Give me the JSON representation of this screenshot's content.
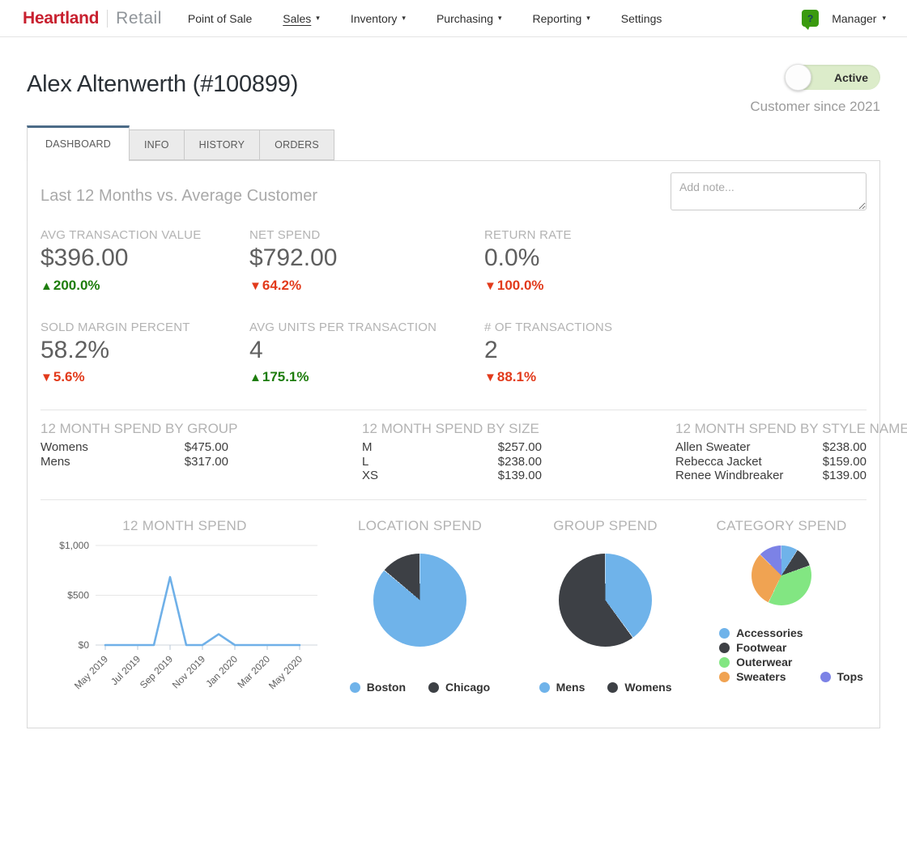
{
  "nav": {
    "brand": {
      "primary": "Heartland",
      "secondary": "Retail"
    },
    "items": [
      {
        "label": "Point of Sale",
        "dropdown": false,
        "active": false
      },
      {
        "label": "Sales",
        "dropdown": true,
        "active": true
      },
      {
        "label": "Inventory",
        "dropdown": true,
        "active": false
      },
      {
        "label": "Purchasing",
        "dropdown": true,
        "active": false
      },
      {
        "label": "Reporting",
        "dropdown": true,
        "active": false
      },
      {
        "label": "Settings",
        "dropdown": false,
        "active": false
      }
    ],
    "help_glyph": "?",
    "user_menu": "Manager"
  },
  "header": {
    "title": "Alex Altenwerth (#100899)",
    "status_toggle": "Active",
    "customer_since": "Customer since 2021"
  },
  "tabs": [
    {
      "label": "DASHBOARD",
      "active": true
    },
    {
      "label": "INFO",
      "active": false
    },
    {
      "label": "HISTORY",
      "active": false
    },
    {
      "label": "ORDERS",
      "active": false
    }
  ],
  "panel": {
    "heading": "Last 12 Months vs. Average Customer",
    "note_placeholder": "Add note...",
    "metrics": [
      {
        "label": "AVG TRANSACTION VALUE",
        "value": "$396.00",
        "delta": "200.0%",
        "direction": "up"
      },
      {
        "label": "NET SPEND",
        "value": "$792.00",
        "delta": "64.2%",
        "direction": "down"
      },
      {
        "label": "RETURN RATE",
        "value": "0.0%",
        "delta": "100.0%",
        "direction": "down"
      },
      {
        "label": "SOLD MARGIN PERCENT",
        "value": "58.2%",
        "delta": "5.6%",
        "direction": "down"
      },
      {
        "label": "AVG UNITS PER TRANSACTION",
        "value": "4",
        "delta": "175.1%",
        "direction": "up"
      },
      {
        "label": "# OF TRANSACTIONS",
        "value": "2",
        "delta": "88.1%",
        "direction": "down"
      }
    ],
    "spend_lists": [
      {
        "title": "12 MONTH SPEND BY GROUP",
        "rows": [
          {
            "name": "Womens",
            "amount": "$475.00"
          },
          {
            "name": "Mens",
            "amount": "$317.00"
          }
        ]
      },
      {
        "title": "12 MONTH SPEND BY SIZE",
        "rows": [
          {
            "name": "M",
            "amount": "$257.00"
          },
          {
            "name": "L",
            "amount": "$238.00"
          },
          {
            "name": "XS",
            "amount": "$139.00"
          }
        ]
      },
      {
        "title": "12 MONTH SPEND BY STYLE NAME",
        "rows": [
          {
            "name": "Allen Sweater",
            "amount": "$238.00"
          },
          {
            "name": "Rebecca Jacket",
            "amount": "$159.00"
          },
          {
            "name": "Renee Windbreaker",
            "amount": "$139.00"
          }
        ]
      }
    ]
  },
  "icons": {
    "caret_down": "▾",
    "up_triangle": "▲",
    "down_triangle": "▼"
  },
  "colors": {
    "brand_red": "#c8202f",
    "line_blue": "#6fb0e8",
    "pie_blue": "#6fb3ea",
    "pie_dark": "#3d4045",
    "pie_green": "#82e682",
    "pie_orange": "#f0a352",
    "pie_purple": "#7c82e6",
    "delta_green": "#1e7d0d",
    "delta_red": "#e23a1b",
    "toggle_green": "#dcecca",
    "tab_accent": "#4c6b87",
    "help_green": "#3a9a0f"
  },
  "chart_data": [
    {
      "type": "line",
      "title": "12 MONTH SPEND",
      "x": [
        "May 2019",
        "Jun 2019",
        "Jul 2019",
        "Aug 2019",
        "Sep 2019",
        "Oct 2019",
        "Nov 2019",
        "Dec 2019",
        "Jan 2020",
        "Feb 2020",
        "Mar 2020",
        "Apr 2020",
        "May 2020"
      ],
      "values": [
        0,
        0,
        0,
        0,
        683,
        0,
        0,
        109,
        0,
        0,
        0,
        0,
        0
      ],
      "x_tick_labels": [
        "May 2019",
        "Jul 2019",
        "Sep 2019",
        "Nov 2019",
        "Jan 2020",
        "Mar 2020",
        "May 2020"
      ],
      "y_ticks": [
        {
          "label": "$0",
          "value": 0
        },
        {
          "label": "$500",
          "value": 500
        },
        {
          "label": "$1,000",
          "value": 1000
        }
      ],
      "ylim": [
        0,
        1000
      ],
      "grid": true,
      "line_color": "#6fb0e8"
    },
    {
      "type": "pie",
      "title": "LOCATION SPEND",
      "slices": [
        {
          "label": "Boston",
          "value": 683,
          "pct": 86.2,
          "color": "#6fb3ea"
        },
        {
          "label": "Chicago",
          "value": 109,
          "pct": 13.8,
          "color": "#3d4045"
        }
      ],
      "legend_position": "bottom",
      "legend_rows": [
        [
          "Boston",
          "Chicago"
        ]
      ]
    },
    {
      "type": "pie",
      "title": "GROUP SPEND",
      "slices": [
        {
          "label": "Mens",
          "value": 317,
          "pct": 40.0,
          "color": "#6fb3ea"
        },
        {
          "label": "Womens",
          "value": 475,
          "pct": 60.0,
          "color": "#3d4045"
        }
      ],
      "legend_position": "bottom",
      "legend_rows": [
        [
          "Mens",
          "Womens"
        ]
      ]
    },
    {
      "type": "pie",
      "title": "CATEGORY SPEND",
      "slices": [
        {
          "label": "Accessories",
          "value": 71,
          "pct": 9.0,
          "color": "#6fb3ea"
        },
        {
          "label": "Footwear",
          "value": 85,
          "pct": 10.7,
          "color": "#3d4045"
        },
        {
          "label": "Outerwear",
          "value": 298,
          "pct": 37.6,
          "color": "#82e682"
        },
        {
          "label": "Sweaters",
          "value": 238,
          "pct": 30.1,
          "color": "#f0a352"
        },
        {
          "label": "Tops",
          "value": 100,
          "pct": 12.6,
          "color": "#7c82e6"
        }
      ],
      "legend_position": "bottom-stacked",
      "legend_rows": [
        [
          "Accessories"
        ],
        [
          "Footwear"
        ],
        [
          "Outerwear"
        ],
        [
          "Sweaters",
          "Tops"
        ]
      ]
    }
  ]
}
